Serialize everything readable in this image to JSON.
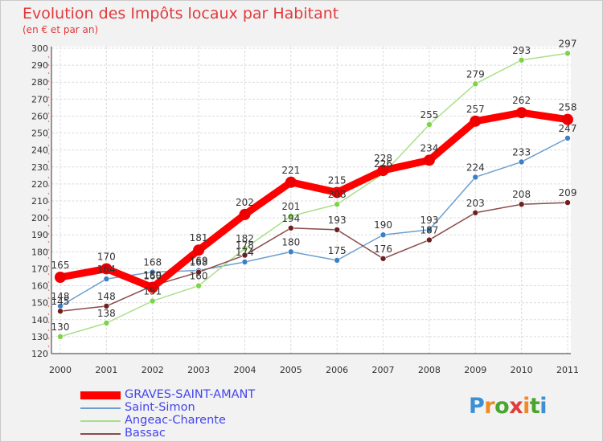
{
  "title": "Evolution des Impôts locaux par Habitant",
  "subtitle": "(en € et par an)",
  "logo": {
    "text": "Proxiti",
    "colors": [
      "#3b8fd4",
      "#f08a24",
      "#4aa52e",
      "#e23b3b",
      "#f08a24",
      "#4aa52e",
      "#3b8fd4"
    ]
  },
  "chart_data": {
    "type": "line",
    "x": [
      2000,
      2001,
      2002,
      2003,
      2004,
      2005,
      2006,
      2007,
      2008,
      2009,
      2010,
      2011
    ],
    "ylim": [
      120,
      300
    ],
    "yticks": [
      120,
      130,
      140,
      150,
      160,
      170,
      180,
      190,
      200,
      210,
      220,
      230,
      240,
      250,
      260,
      270,
      280,
      290,
      300
    ],
    "grid": true,
    "legend_position": "bottom-left",
    "series": [
      {
        "name": "GRAVES-SAINT-AMANT",
        "color": "#ff0000",
        "marker_color": "#ee0000",
        "width": 9,
        "marker_r": 7,
        "values": [
          165,
          170,
          159,
          181,
          202,
          221,
          215,
          228,
          234,
          257,
          262,
          258
        ]
      },
      {
        "name": "Saint-Simon",
        "color": "#6b9fcf",
        "marker_color": "#3b7fc4",
        "width": 1.5,
        "marker_r": 3.5,
        "values": [
          148,
          164,
          168,
          169,
          174,
          180,
          175,
          190,
          193,
          224,
          233,
          247
        ]
      },
      {
        "name": "Angeac-Charente",
        "color": "#a8e08a",
        "marker_color": "#7ed348",
        "width": 1.5,
        "marker_r": 3.5,
        "values": [
          130,
          138,
          151,
          160,
          182,
          201,
          208,
          226,
          255,
          279,
          293,
          297
        ]
      },
      {
        "name": "Bassac",
        "color": "#8a4a4a",
        "marker_color": "#6e1f1f",
        "width": 1.5,
        "marker_r": 3.5,
        "values": [
          145,
          148,
          160,
          168,
          178,
          194,
          193,
          176,
          187,
          203,
          208,
          209
        ]
      }
    ]
  }
}
